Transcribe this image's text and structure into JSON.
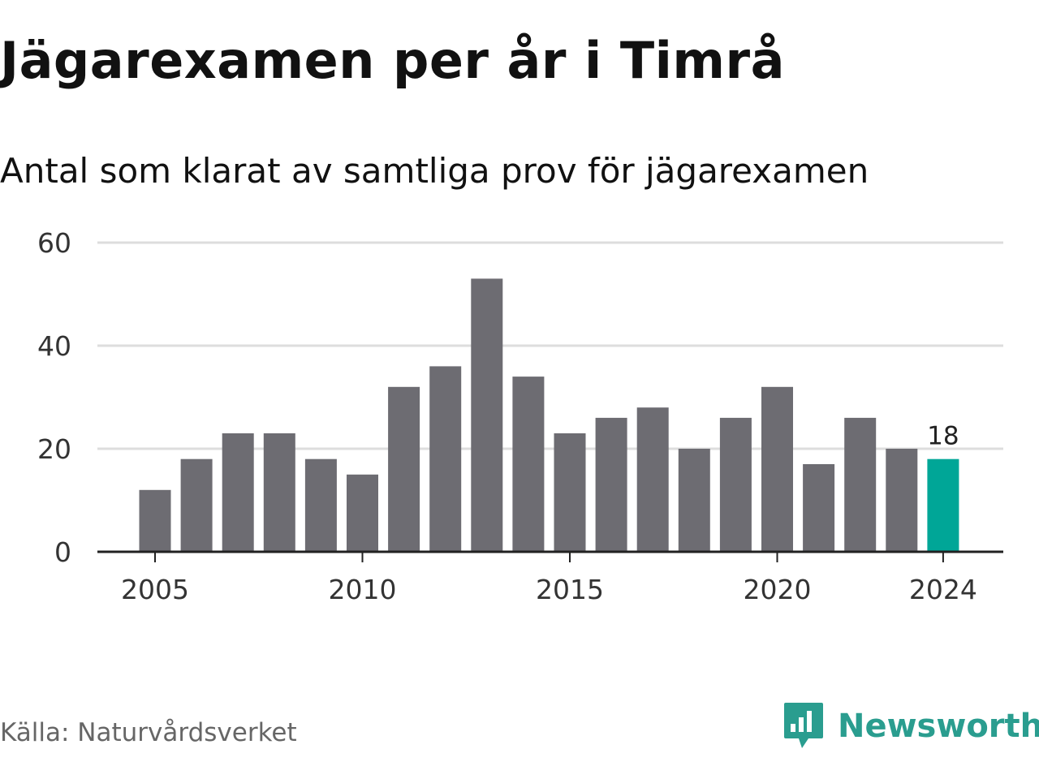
{
  "title": "Jägarexamen per år i Timrå",
  "subtitle": "Antal som klarat av samtliga prov för jägarexamen",
  "source": "Källa: Naturvårdsverket",
  "brand": {
    "name": "Newsworthy",
    "icon": "newsworthy-logo-icon",
    "color": "#2a9d8f"
  },
  "colors": {
    "bar": "#6d6c72",
    "highlight": "#00a697",
    "grid": "#dddddd",
    "axis": "#222222"
  },
  "chart_data": {
    "type": "bar",
    "categories": [
      "2004",
      "2005",
      "2006",
      "2007",
      "2008",
      "2009",
      "2010",
      "2011",
      "2012",
      "2013",
      "2014",
      "2015",
      "2016",
      "2017",
      "2018",
      "2019",
      "2020",
      "2021",
      "2022",
      "2023",
      "2024"
    ],
    "values": [
      null,
      12,
      18,
      23,
      23,
      18,
      15,
      32,
      36,
      53,
      34,
      23,
      26,
      28,
      20,
      26,
      32,
      17,
      26,
      20,
      18
    ],
    "highlight": "2024",
    "xticks": [
      "2005",
      "2010",
      "2015",
      "2020",
      "2024"
    ],
    "yticks": [
      0,
      20,
      40,
      60
    ],
    "ylim": [
      0,
      60
    ],
    "annotation": {
      "category": "2024",
      "label": "18"
    },
    "title": "Jägarexamen per år i Timrå",
    "subtitle": "Antal som klarat av samtliga prov för jägarexamen",
    "xlabel": "",
    "ylabel": "",
    "grid": true
  }
}
